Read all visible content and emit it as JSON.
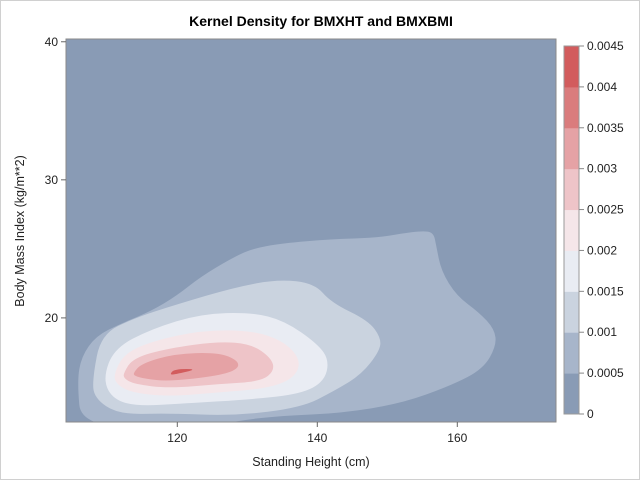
{
  "chart_data": {
    "type": "heatmap",
    "subtype": "filled-contour",
    "title": "Kernel Density for BMXHT and BMXBMI",
    "xlabel": "Standing Height (cm)",
    "ylabel": "Body Mass Index (kg/m**2)",
    "xlim": [
      104.1,
      174.1
    ],
    "ylim": [
      12.46,
      40.2
    ],
    "xticks": [
      120,
      140,
      160
    ],
    "yticks": [
      20,
      30,
      40
    ],
    "xtick_labels": [
      "120",
      "140",
      "160"
    ],
    "ytick_labels": [
      "20",
      "30",
      "40"
    ],
    "colorbar": {
      "levels": [
        0,
        0.0005,
        0.001,
        0.0015,
        0.002,
        0.0025,
        0.003,
        0.0035,
        0.004,
        0.0045
      ],
      "labels": [
        "0",
        "0.0005",
        "0.001",
        "0.0015",
        "0.002",
        "0.0025",
        "0.003",
        "0.0035",
        "0.004",
        "0.0045"
      ],
      "colors": [
        "#899bb5",
        "#a7b5ca",
        "#cad3df",
        "#e9ecf3",
        "#f5e6e9",
        "#eec4c8",
        "#e5a2a5",
        "#da7c7d",
        "#d25c5d"
      ],
      "placement": "right"
    },
    "contours": [
      {
        "level": 0.0005,
        "points": [
          [
            106.3,
            12
          ],
          [
            105.7,
            15.4
          ],
          [
            106.3,
            17.2
          ],
          [
            108.4,
            18.7
          ],
          [
            112,
            19.6
          ],
          [
            116.3,
            20.5
          ],
          [
            119.9,
            21.6
          ],
          [
            123.4,
            23.0
          ],
          [
            127.7,
            24.3
          ],
          [
            130.6,
            25.0
          ],
          [
            134.9,
            25.4
          ],
          [
            142,
            25.7
          ],
          [
            148.4,
            25.8
          ],
          [
            152,
            26.1
          ],
          [
            154.9,
            26.3
          ],
          [
            156.6,
            26.2
          ],
          [
            157,
            25.2
          ],
          [
            157.7,
            23.4
          ],
          [
            159.9,
            21.6
          ],
          [
            163.1,
            20.4
          ],
          [
            165.3,
            19.2
          ],
          [
            165.6,
            18.0
          ],
          [
            163.7,
            16.3
          ],
          [
            159.1,
            15.1
          ],
          [
            152,
            13.8
          ],
          [
            143.4,
            13.1
          ],
          [
            134.9,
            12.9
          ],
          [
            129.1,
            12.6
          ],
          [
            123.4,
            12
          ]
        ]
      },
      {
        "level": 0.001,
        "points": [
          [
            107.9,
            15.65
          ],
          [
            109.1,
            18.8
          ],
          [
            113.9,
            20.0
          ],
          [
            120.1,
            21.0
          ],
          [
            128.1,
            22.2
          ],
          [
            134.4,
            22.8
          ],
          [
            139.6,
            22.5
          ],
          [
            142,
            21.1
          ],
          [
            147.3,
            19.8
          ],
          [
            149.1,
            18.55
          ],
          [
            148.9,
            17.6
          ],
          [
            146.3,
            15.9
          ],
          [
            142.4,
            14.7
          ],
          [
            137.7,
            13.5
          ],
          [
            128.1,
            12.9
          ],
          [
            118.7,
            13.1
          ],
          [
            111.6,
            13.0
          ],
          [
            108.1,
            14.2
          ]
        ]
      },
      {
        "level": 0.0015,
        "points": [
          [
            109.4,
            15.65
          ],
          [
            111,
            17.8
          ],
          [
            116.3,
            19.2
          ],
          [
            123.4,
            20.3
          ],
          [
            130.6,
            20.4
          ],
          [
            135.3,
            19.8
          ],
          [
            140.1,
            18.1
          ],
          [
            141.7,
            16.9
          ],
          [
            141,
            15.4
          ],
          [
            137.7,
            14.5
          ],
          [
            130.6,
            14.1
          ],
          [
            121,
            13.8
          ],
          [
            113.9,
            13.6
          ],
          [
            110.6,
            14.2
          ]
        ]
      },
      {
        "level": 0.002,
        "points": [
          [
            110.9,
            15.9
          ],
          [
            112.4,
            17.4
          ],
          [
            116.3,
            18.3
          ],
          [
            123.4,
            19.1
          ],
          [
            130.6,
            19.1
          ],
          [
            135.3,
            18.3
          ],
          [
            137.7,
            16.9
          ],
          [
            136.7,
            15.65
          ],
          [
            133,
            14.9
          ],
          [
            125.9,
            14.6
          ],
          [
            118.7,
            14.3
          ],
          [
            113.4,
            14.6
          ],
          [
            111.3,
            15.2
          ]
        ]
      },
      {
        "level": 0.0025,
        "points": [
          [
            112.3,
            16.0
          ],
          [
            113.7,
            17.1
          ],
          [
            118.7,
            17.8
          ],
          [
            125.9,
            18.3
          ],
          [
            130.6,
            18.1
          ],
          [
            133.4,
            17.1
          ],
          [
            133.9,
            16.2
          ],
          [
            132,
            15.4
          ],
          [
            125.9,
            15.2
          ],
          [
            118.7,
            14.9
          ],
          [
            113.9,
            15.2
          ],
          [
            112.4,
            15.6
          ]
        ]
      },
      {
        "level": 0.003,
        "points": [
          [
            113.7,
            16.0
          ],
          [
            114.9,
            16.7
          ],
          [
            119.6,
            17.4
          ],
          [
            125.9,
            17.5
          ],
          [
            128.7,
            16.9
          ],
          [
            128.7,
            16.3
          ],
          [
            125.9,
            15.8
          ],
          [
            118.7,
            15.4
          ],
          [
            115.3,
            15.6
          ],
          [
            113.9,
            15.8
          ]
        ]
      },
      {
        "level": 0.004,
        "points": [
          [
            118.9,
            15.9
          ],
          [
            119.6,
            16.3
          ],
          [
            123,
            16.3
          ],
          [
            119.6,
            15.9
          ]
        ]
      }
    ]
  }
}
